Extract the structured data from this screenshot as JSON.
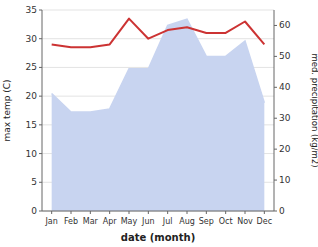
{
  "chart_data": {
    "type": "line",
    "xlabel": "date (month)",
    "ylabel": "max temp (C)",
    "y2label": "med. precipitation (kg/m2)",
    "categories": [
      "Jan",
      "Feb",
      "Mar",
      "Apr",
      "May",
      "Jun",
      "Jul",
      "Aug",
      "Sep",
      "Oct",
      "Nov",
      "Dec"
    ],
    "series": [
      {
        "type": "area",
        "axis": "y2",
        "color": "#c8d4f0",
        "values": [
          38,
          32,
          32,
          33,
          46,
          46,
          60,
          62,
          50,
          50,
          55,
          35
        ]
      },
      {
        "type": "line",
        "color": "#cc3333",
        "values": [
          29.0,
          28.5,
          28.5,
          29.0,
          33.5,
          30.0,
          31.5,
          32.0,
          31.0,
          31.0,
          33.0,
          29.0
        ]
      }
    ],
    "ylim": [
      0,
      35
    ],
    "yticks": [
      0,
      5,
      10,
      15,
      20,
      25,
      30,
      35
    ],
    "y2lim": [
      0,
      65
    ],
    "y2ticks": [
      0,
      10,
      20,
      30,
      40,
      50,
      60
    ],
    "grid": true
  }
}
